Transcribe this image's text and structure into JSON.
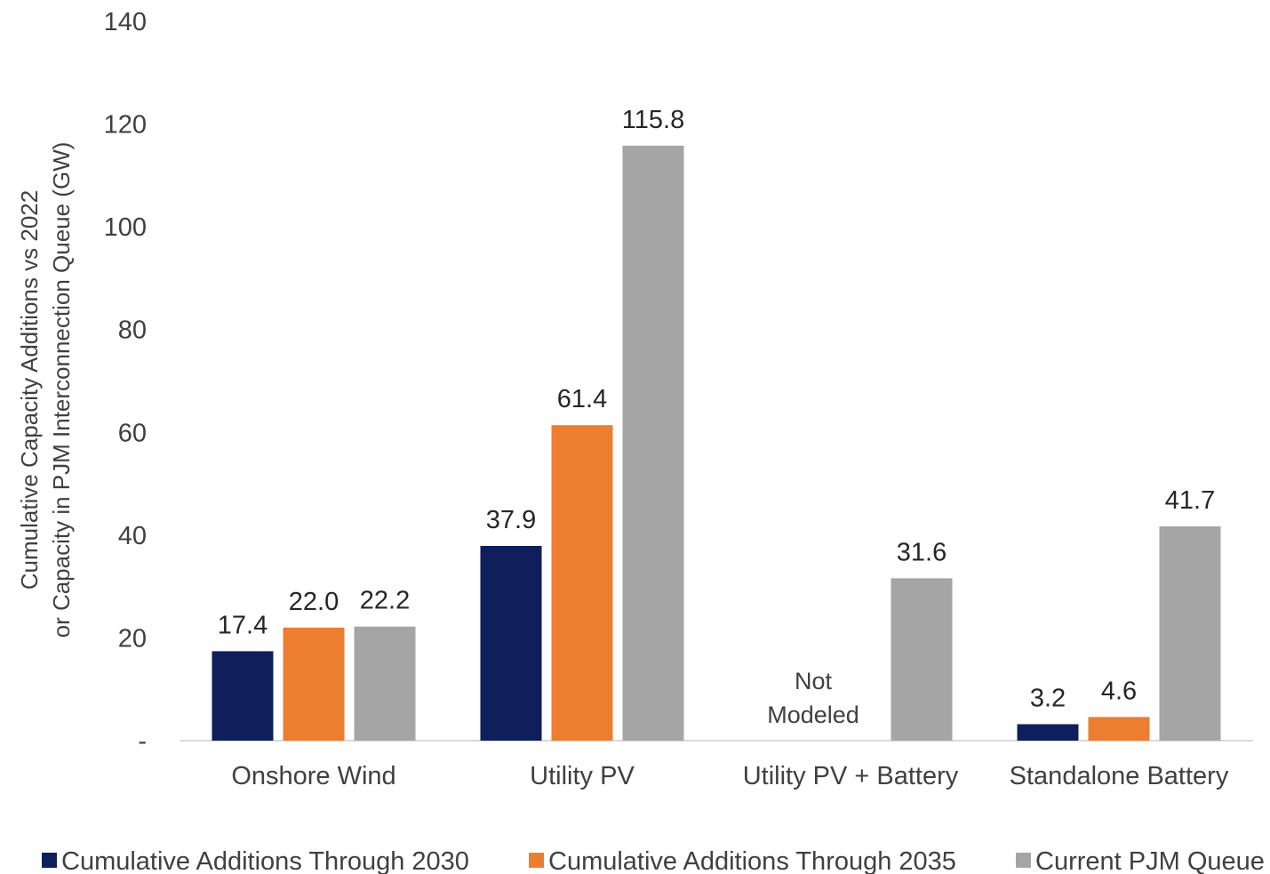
{
  "chart_data": {
    "type": "bar",
    "categories": [
      "Onshore Wind",
      "Utility PV",
      "Utility PV + Battery",
      "Standalone Battery"
    ],
    "series": [
      {
        "name": "Cumulative Additions Through 2030",
        "values": [
          17.4,
          37.9,
          null,
          3.2
        ],
        "color": "#0F1F5C",
        "labels": [
          "17.4",
          "37.9",
          null,
          "3.2"
        ]
      },
      {
        "name": "Cumulative Additions Through 2035",
        "values": [
          22.0,
          61.4,
          null,
          4.6
        ],
        "color": "#ED7D31",
        "labels": [
          "22.0",
          "61.4",
          null,
          "4.6"
        ]
      },
      {
        "name": "Current PJM Queue",
        "values": [
          22.2,
          115.8,
          31.6,
          41.7
        ],
        "color": "#A5A5A5",
        "labels": [
          "22.2",
          "115.8",
          "31.6",
          "41.7"
        ]
      }
    ],
    "ylabel": [
      "Cumulative Capacity Additions vs 2022",
      "or Capacity in PJM Interconnection Queue (GW)"
    ],
    "ylim": [
      0,
      140
    ],
    "yticks": [
      0,
      20,
      40,
      60,
      80,
      100,
      120,
      140
    ],
    "ytick_labels": [
      "-",
      "20",
      "40",
      "60",
      "80",
      "100",
      "120",
      "140"
    ],
    "annotation": {
      "category_index": 2,
      "lines": [
        "Not",
        "Modeled"
      ]
    },
    "grid": false,
    "legend_position": "bottom"
  }
}
